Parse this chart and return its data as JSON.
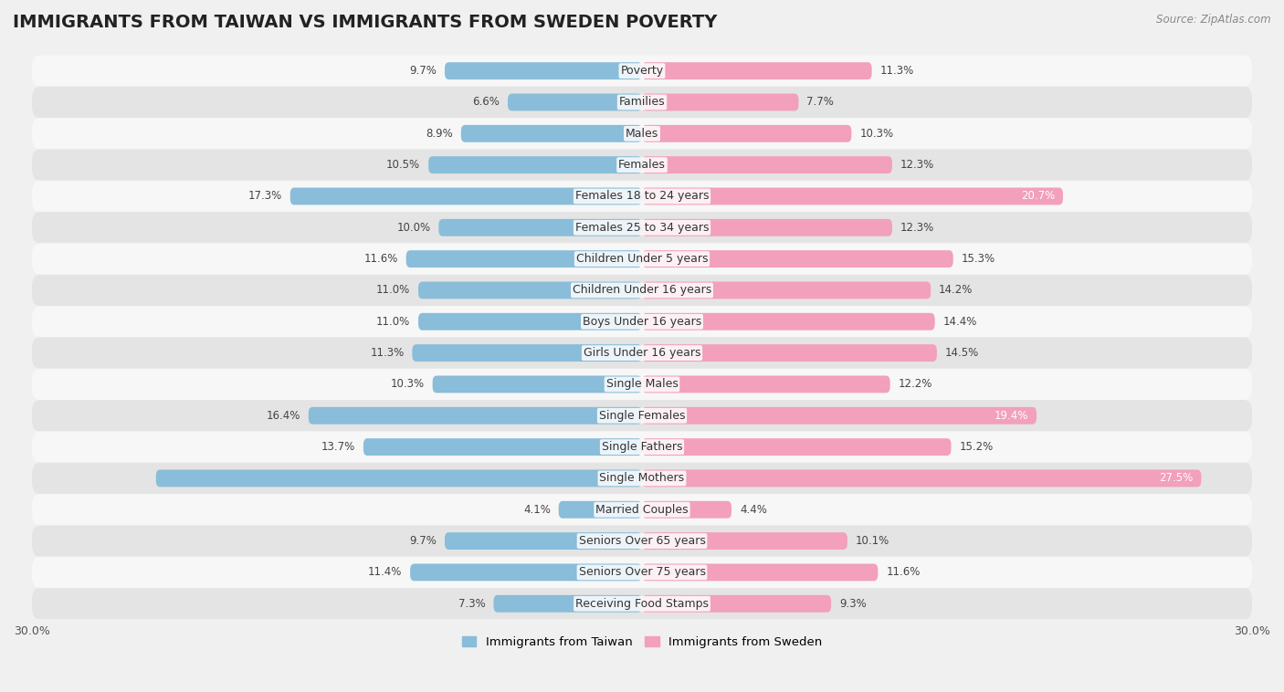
{
  "title": "IMMIGRANTS FROM TAIWAN VS IMMIGRANTS FROM SWEDEN POVERTY",
  "source": "Source: ZipAtlas.com",
  "categories": [
    "Poverty",
    "Families",
    "Males",
    "Females",
    "Females 18 to 24 years",
    "Females 25 to 34 years",
    "Children Under 5 years",
    "Children Under 16 years",
    "Boys Under 16 years",
    "Girls Under 16 years",
    "Single Males",
    "Single Females",
    "Single Fathers",
    "Single Mothers",
    "Married Couples",
    "Seniors Over 65 years",
    "Seniors Over 75 years",
    "Receiving Food Stamps"
  ],
  "taiwan_values": [
    9.7,
    6.6,
    8.9,
    10.5,
    17.3,
    10.0,
    11.6,
    11.0,
    11.0,
    11.3,
    10.3,
    16.4,
    13.7,
    23.9,
    4.1,
    9.7,
    11.4,
    7.3
  ],
  "sweden_values": [
    11.3,
    7.7,
    10.3,
    12.3,
    20.7,
    12.3,
    15.3,
    14.2,
    14.4,
    14.5,
    12.2,
    19.4,
    15.2,
    27.5,
    4.4,
    10.1,
    11.6,
    9.3
  ],
  "taiwan_color": "#89bdd9",
  "sweden_color": "#f2a0bb",
  "taiwan_label_inside_color": "white",
  "sweden_label_inside_color": "white",
  "background_color": "#f0f0f0",
  "row_color_light": "#f7f7f7",
  "row_color_dark": "#e4e4e4",
  "axis_limit": 30.0,
  "legend_taiwan": "Immigrants from Taiwan",
  "legend_sweden": "Immigrants from Sweden",
  "title_fontsize": 14,
  "label_fontsize": 9,
  "value_fontsize": 8.5,
  "taiwan_inside_threshold": 20.0,
  "sweden_inside_threshold": 18.0
}
